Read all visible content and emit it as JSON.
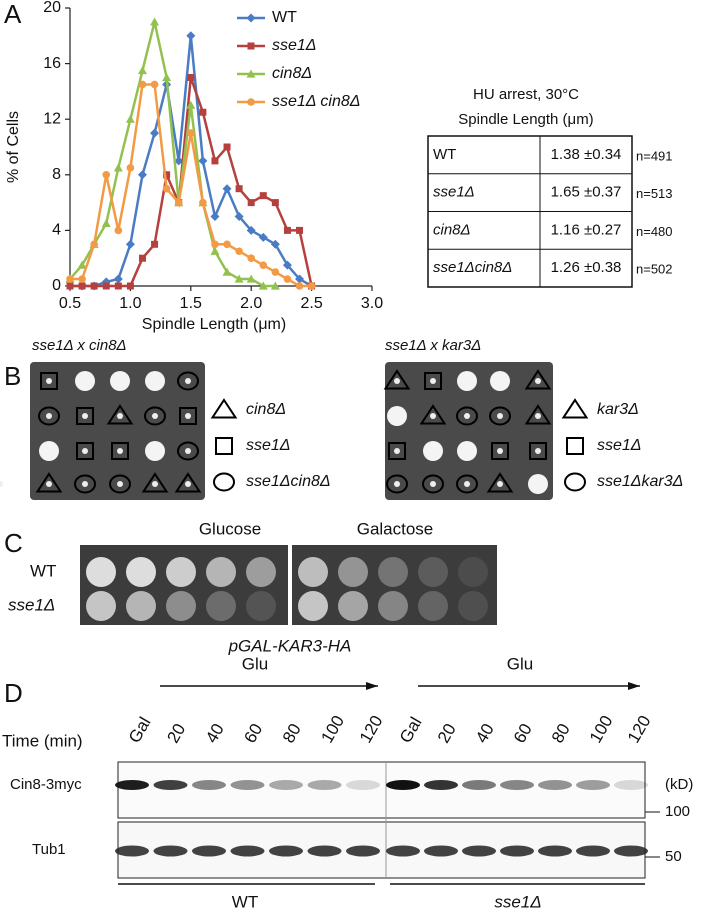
{
  "panel_labels": [
    "A",
    "B",
    "C",
    "D"
  ],
  "chart_data": {
    "type": "line",
    "xlabel": "Spindle Length (μm)",
    "ylabel": "% of Cells",
    "x": [
      0.5,
      0.6,
      0.7,
      0.8,
      0.9,
      1.0,
      1.1,
      1.2,
      1.3,
      1.4,
      1.5,
      1.6,
      1.7,
      1.8,
      1.9,
      2.0,
      2.1,
      2.2,
      2.3,
      2.4,
      2.5
    ],
    "xlim": [
      0.5,
      3.0
    ],
    "xticks": [
      0.5,
      {
        "value": 1,
        "label": "1.0"
      },
      1.5,
      {
        "value": 2,
        "label": "2.0"
      },
      2.5,
      {
        "value": 3,
        "label": "3.0"
      }
    ],
    "ylim": [
      0,
      20
    ],
    "yticks": [
      0,
      4,
      8,
      12,
      16,
      20
    ],
    "series": [
      {
        "name": "WT",
        "color": "#4a7cc4",
        "marker": "diamond",
        "values": [
          0,
          0,
          0,
          0.3,
          0.5,
          3,
          8,
          11,
          14.5,
          9,
          18,
          9,
          5,
          7,
          5,
          4,
          3.5,
          3,
          1.5,
          0.5,
          0
        ]
      },
      {
        "name": "sse1Δ",
        "color": "#b5403e",
        "marker": "square",
        "values": [
          0,
          0,
          0,
          0,
          0,
          0,
          2,
          3,
          8,
          6,
          15,
          12.5,
          9,
          10,
          7,
          6,
          6.5,
          6,
          4,
          4,
          0
        ]
      },
      {
        "name": "cin8Δ",
        "color": "#93c150",
        "marker": "triangle",
        "values": [
          0.5,
          1.5,
          3,
          4.5,
          8.5,
          12,
          15.5,
          19,
          15,
          6,
          13,
          6,
          2.5,
          1,
          0.5,
          0.5,
          0,
          0,
          null,
          null,
          null
        ]
      },
      {
        "name": "sse1Δ cin8Δ",
        "color": "#f39a45",
        "marker": "circle",
        "values": [
          0.5,
          0.5,
          3,
          8,
          4,
          8.5,
          14.5,
          14.5,
          7,
          6,
          11,
          6,
          3,
          3,
          2.5,
          2,
          1.5,
          1,
          0.5,
          0,
          0
        ]
      }
    ]
  },
  "table": {
    "title": "HU arrest, 30°C",
    "subtitle": "Spindle Length (μm)",
    "rows": [
      [
        "WT",
        "1.38 ±0.34",
        "n=491"
      ],
      [
        "sse1Δ",
        "1.65 ±0.37",
        "n=513"
      ],
      [
        "cin8Δ",
        "1.16 ±0.27",
        "n=480"
      ],
      [
        "sse1Δcin8Δ",
        "1.26 ±0.38",
        "n=502"
      ]
    ]
  },
  "panel_b": {
    "left_title": "sse1Δ x cin8Δ",
    "left_legend": [
      "cin8Δ",
      "sse1Δ",
      "sse1Δcin8Δ"
    ],
    "right_title": "sse1Δ x kar3Δ",
    "right_legend": [
      "kar3Δ",
      "sse1Δ",
      "sse1Δkar3Δ"
    ]
  },
  "panel_c": {
    "conditions": [
      "Glucose",
      "Galactose"
    ],
    "strains": [
      "WT",
      "sse1Δ"
    ],
    "caption": "pGAL-KAR3-HA"
  },
  "panel_d": {
    "treatment": "Glu",
    "time_label": "Time (min)",
    "lanes": [
      "Gal",
      "20",
      "40",
      "60",
      "80",
      "100",
      "120"
    ],
    "blots": [
      "Cin8-3myc",
      "Tub1"
    ],
    "unit": "(kD)",
    "markers": [
      "100",
      "50"
    ],
    "strains": [
      "WT",
      "sse1Δ"
    ]
  }
}
